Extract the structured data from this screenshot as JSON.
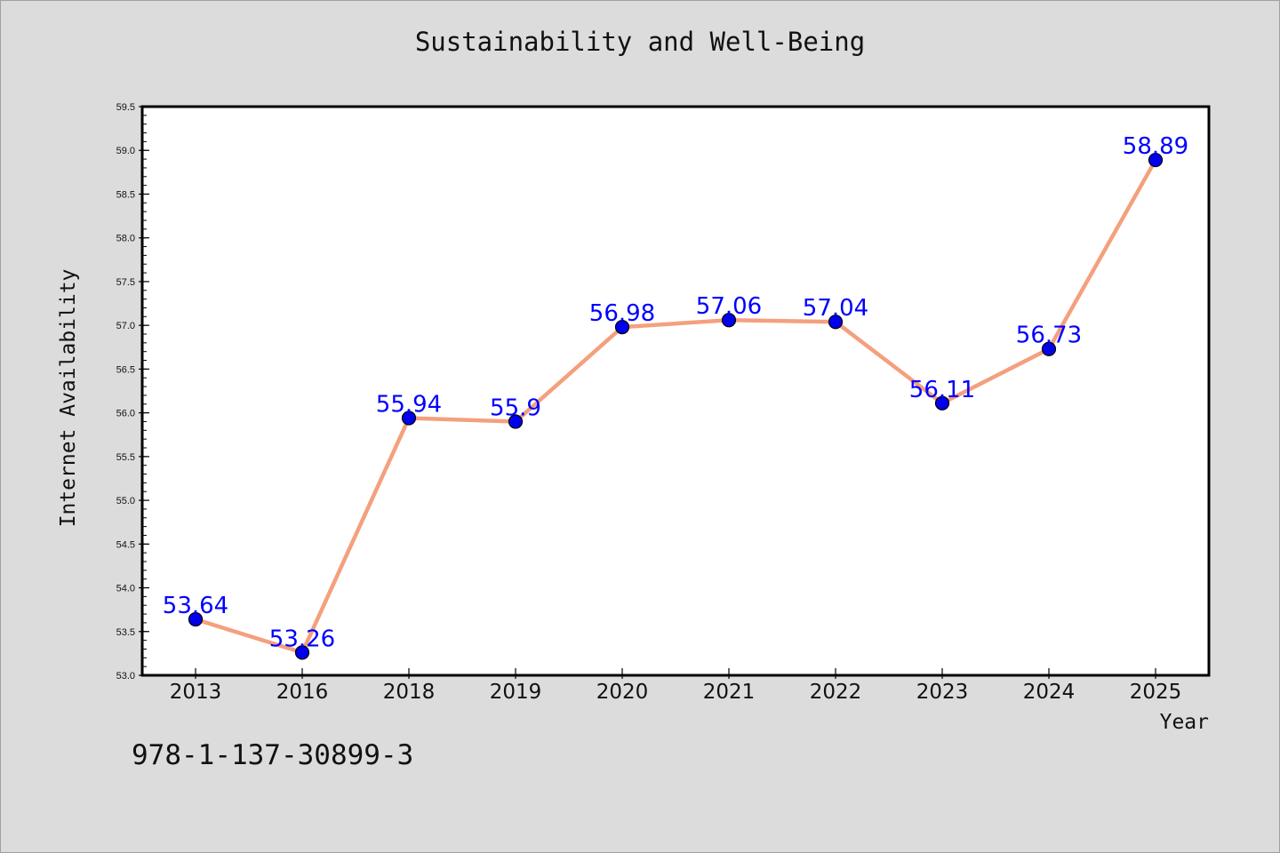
{
  "chart_data": {
    "type": "line",
    "title": "Sustainability and Well-Being",
    "xlabel": "Year",
    "ylabel": "Internet Availability",
    "categories": [
      "2013",
      "2016",
      "2018",
      "2019",
      "2020",
      "2021",
      "2022",
      "2023",
      "2024",
      "2025"
    ],
    "series": [
      {
        "values": [
          53.64,
          53.26,
          55.94,
          55.9,
          56.98,
          57.06,
          57.04,
          56.11,
          56.73,
          58.89
        ],
        "data_labels": [
          "53.64",
          "53.26",
          "55.94",
          "55.9",
          "56.98",
          "57.06",
          "57.04",
          "56.11",
          "56.73",
          "58.89"
        ]
      }
    ],
    "ylim": [
      53.0,
      59.5
    ],
    "yticks": [
      "53.0",
      "53.5",
      "54.0",
      "54.5",
      "55.0",
      "55.5",
      "56.0",
      "56.5",
      "57.0",
      "57.5",
      "58.0",
      "58.5",
      "59.0",
      "59.5"
    ],
    "grid": false,
    "line_color": "#f4a07e",
    "marker_color": "#0000ee",
    "label_color": "#0000ff"
  },
  "footer": {
    "code": "978-1-137-30899-3"
  }
}
